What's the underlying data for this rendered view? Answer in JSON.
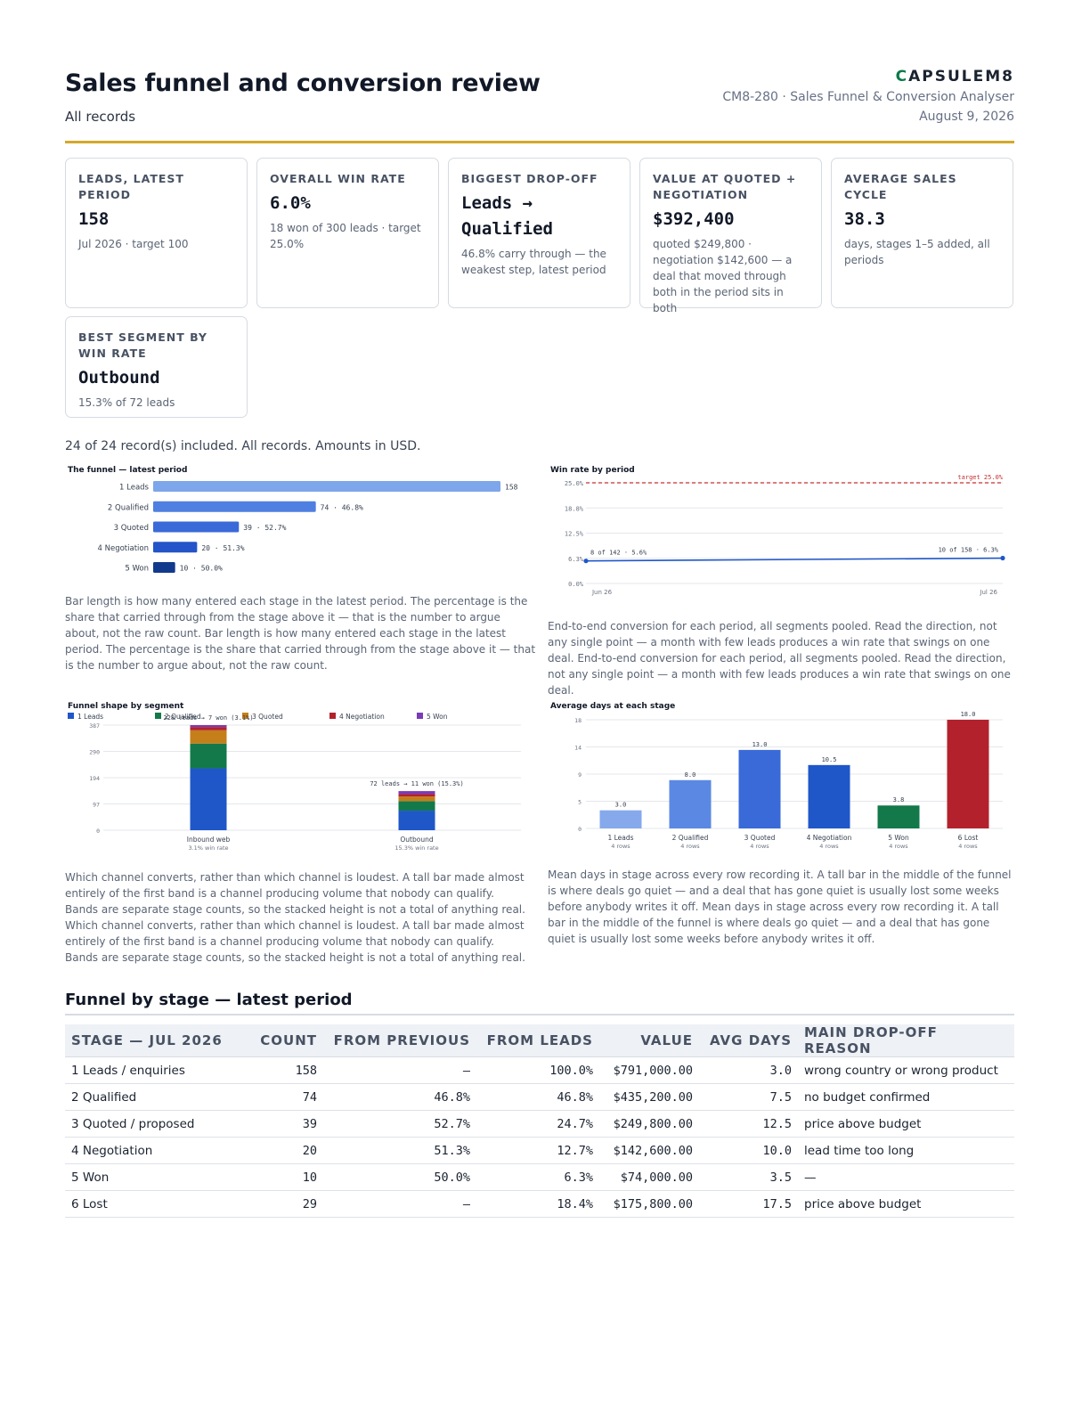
{
  "header": {
    "title": "Sales funnel and conversion review",
    "subtitle": "All records",
    "brand_mark": "C",
    "brand_rest": "APSULEM8",
    "doc_id": "CM8-280 · Sales Funnel & Conversion Analyser",
    "date": "August 9, 2026"
  },
  "kpis": [
    {
      "label": "LEADS, LATEST PERIOD",
      "value": "158",
      "note": "Jul 2026 · target 100"
    },
    {
      "label": "OVERALL WIN RATE",
      "value": "6.0%",
      "note": "18 won of 300 leads · target 25.0%"
    },
    {
      "label": "BIGGEST DROP-OFF",
      "value": "Leads → Qualified",
      "note": "46.8% carry through — the weakest step, latest period"
    },
    {
      "label": "VALUE AT QUOTED + NEGOTIATION",
      "value": "$392,400",
      "note": "quoted $249,800 · negotiation $142,600 — a deal that moved through both in the period sits in both"
    },
    {
      "label": "AVERAGE SALES CYCLE",
      "value": "38.3",
      "note": "days, stages 1–5 added, all periods"
    },
    {
      "label": "BEST SEGMENT BY WIN RATE",
      "value": "Outbound",
      "note": "15.3% of 72 leads"
    }
  ],
  "included_line": "24 of 24 record(s) included. All records. Amounts in USD.",
  "chart_data": [
    {
      "type": "bar",
      "title": "The funnel — latest period",
      "orientation": "horizontal",
      "categories": [
        "1 Leads",
        "2 Qualified",
        "3 Quoted",
        "4 Negotiation",
        "5 Won"
      ],
      "values": [
        158,
        74,
        39,
        20,
        10
      ],
      "labels": [
        "158",
        "74 · 46.8%",
        "39 · 52.7%",
        "20 · 51.3%",
        "10 · 50.0%"
      ],
      "colors": [
        "#7ea6ea",
        "#4f7fe0",
        "#3a6ad8",
        "#2454c8",
        "#123a8c"
      ]
    },
    {
      "type": "line",
      "title": "Win rate by period",
      "x": [
        "Jun 26",
        "Jul 26"
      ],
      "y": [
        5.6,
        6.3
      ],
      "point_labels": [
        "8 of 142 · 5.6%",
        "10 of 158 · 6.3%"
      ],
      "yticks": [
        "0.0%",
        "6.3%",
        "12.5%",
        "18.8%",
        "25.0%"
      ],
      "ylim": [
        0,
        25
      ],
      "target_value": 25,
      "target_label": "target 25.0%",
      "grid": true
    },
    {
      "type": "bar",
      "stacked": true,
      "title": "Funnel shape by segment",
      "legend": [
        "1 Leads",
        "2 Qualified",
        "3 Quoted",
        "4 Negotiation",
        "5 Won"
      ],
      "legend_colors": [
        "#1f57c9",
        "#13794a",
        "#c47e1a",
        "#b3222c",
        "#7a3bb8"
      ],
      "legend_position": "top",
      "categories": [
        "Inbound web",
        "Outbound"
      ],
      "sublabels": [
        "3.1% win rate",
        "15.3% win rate"
      ],
      "annotations": [
        "228 leads → 7 won (3.1%)",
        "72 leads → 11 won (15.3%)"
      ],
      "series": [
        {
          "name": "1 Leads",
          "values": [
            228,
            72
          ]
        },
        {
          "name": "2 Qualified",
          "values": [
            91,
            35
          ]
        },
        {
          "name": "3 Quoted",
          "values": [
            49,
            17
          ]
        },
        {
          "name": "4 Negotiation",
          "values": [
            12,
            9
          ]
        },
        {
          "name": "5 Won",
          "values": [
            7,
            11
          ]
        }
      ],
      "yticks": [
        "0",
        "97",
        "194",
        "290",
        "387"
      ],
      "ylim": [
        0,
        387
      ]
    },
    {
      "type": "bar",
      "title": "Average days at each stage",
      "categories": [
        "1 Leads",
        "2 Qualified",
        "3 Quoted",
        "4 Negotiation",
        "5 Won",
        "6 Lost"
      ],
      "sublabels": [
        "4 rows",
        "4 rows",
        "4 rows",
        "4 rows",
        "4 rows",
        "4 rows"
      ],
      "values": [
        3.0,
        8.0,
        13.0,
        10.5,
        3.8,
        18.0
      ],
      "labels": [
        "3.0",
        "8.0",
        "13.0",
        "10.5",
        "3.8",
        "18.0"
      ],
      "colors": [
        "#86a9ec",
        "#5b88e3",
        "#3a6ad8",
        "#1f57c9",
        "#13794a",
        "#b3222c"
      ],
      "yticks": [
        "0",
        "5",
        "9",
        "14",
        "18"
      ],
      "ylim": [
        0,
        18
      ]
    }
  ],
  "captions": {
    "funnel": "Bar length is how many entered each stage in the latest period. The percentage is the share that carried through from the stage above it — that is the number to argue about, not the raw count. Bar length is how many entered each stage in the latest period. The percentage is the share that carried through from the stage above it — that is the number to argue about, not the raw count.",
    "winrate": "End-to-end conversion for each period, all segments pooled. Read the direction, not any single point — a month with few leads produces a win rate that swings on one deal. End-to-end conversion for each period, all segments pooled. Read the direction, not any single point — a month with few leads produces a win rate that swings on one deal.",
    "segment": "Which channel converts, rather than which channel is loudest. A tall bar made almost entirely of the first band is a channel producing volume that nobody can qualify. Bands are separate stage counts, so the stacked height is not a total of anything real. Which channel converts, rather than which channel is loudest. A tall bar made almost entirely of the first band is a channel producing volume that nobody can qualify. Bands are separate stage counts, so the stacked height is not a total of anything real.",
    "days": "Mean days in stage across every row recording it. A tall bar in the middle of the funnel is where deals go quiet — and a deal that has gone quiet is usually lost some weeks before anybody writes it off. Mean days in stage across every row recording it. A tall bar in the middle of the funnel is where deals go quiet — and a deal that has gone quiet is usually lost some weeks before anybody writes it off."
  },
  "table": {
    "title": "Funnel by stage — latest period",
    "headers": [
      "STAGE — JUL 2026",
      "COUNT",
      "FROM PREVIOUS",
      "FROM LEADS",
      "VALUE",
      "AVG DAYS",
      "MAIN DROP-OFF REASON"
    ],
    "rows": [
      [
        "1 Leads / enquiries",
        "158",
        "–",
        "100.0%",
        "$791,000.00",
        "3.0",
        "wrong country or wrong product"
      ],
      [
        "2 Qualified",
        "74",
        "46.8%",
        "46.8%",
        "$435,200.00",
        "7.5",
        "no budget confirmed"
      ],
      [
        "3 Quoted / proposed",
        "39",
        "52.7%",
        "24.7%",
        "$249,800.00",
        "12.5",
        "price above budget"
      ],
      [
        "4 Negotiation",
        "20",
        "51.3%",
        "12.7%",
        "$142,600.00",
        "10.0",
        "lead time too long"
      ],
      [
        "5 Won",
        "10",
        "50.0%",
        "6.3%",
        "$74,000.00",
        "3.5",
        "—"
      ],
      [
        "6 Lost",
        "29",
        "–",
        "18.4%",
        "$175,800.00",
        "17.5",
        "price above budget"
      ]
    ]
  }
}
